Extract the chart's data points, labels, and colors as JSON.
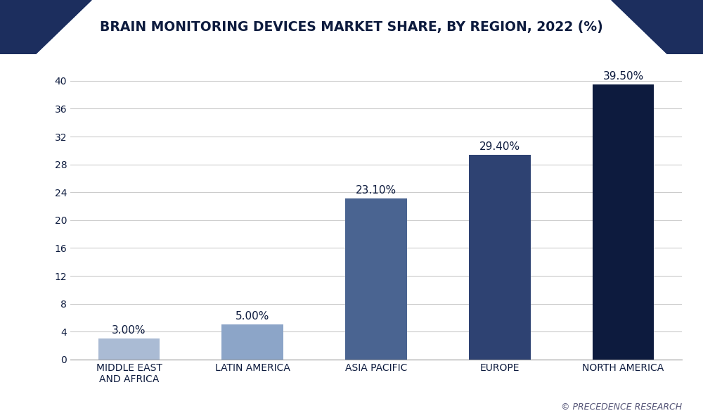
{
  "title": "BRAIN MONITORING DEVICES MARKET SHARE, BY REGION, 2022 (%)",
  "categories": [
    "MIDDLE EAST\nAND AFRICA",
    "LATIN AMERICA",
    "ASIA PACIFIC",
    "EUROPE",
    "NORTH AMERICA"
  ],
  "values": [
    3.0,
    5.0,
    23.1,
    29.4,
    39.5
  ],
  "labels": [
    "3.00%",
    "5.00%",
    "23.10%",
    "29.40%",
    "39.50%"
  ],
  "bar_colors": [
    "#aabbd4",
    "#8ca5c8",
    "#4a6491",
    "#2e4272",
    "#0d1b3e"
  ],
  "ylim": [
    0,
    42
  ],
  "yticks": [
    0,
    4,
    8,
    12,
    16,
    20,
    24,
    28,
    32,
    36,
    40
  ],
  "background_color": "#ffffff",
  "plot_bg_color": "#ffffff",
  "title_color": "#0d1b3e",
  "title_fontsize": 13.5,
  "label_fontsize": 11,
  "tick_fontsize": 10,
  "watermark": "© PRECEDENCE RESEARCH",
  "header_bg_color": "#ffffff",
  "nav_color": "#1c2e5e",
  "nav_accent": "#3a5a9a",
  "border_color": "#1c2e5e"
}
